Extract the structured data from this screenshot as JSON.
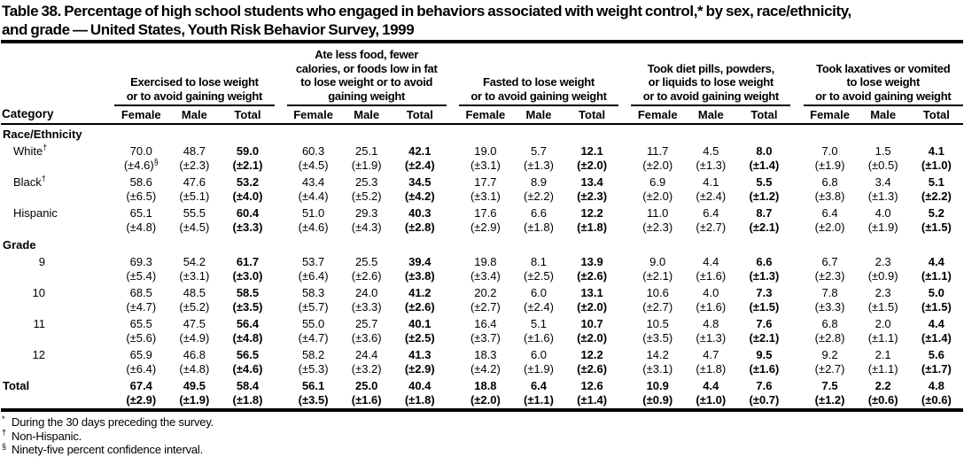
{
  "table": {
    "title": "Table 38. Percentage of high school students who engaged in behaviors associated with weight control,* by sex, race/ethnicity,\nand grade — United States, Youth Risk Behavior Survey, 1999",
    "category_header": "Category",
    "column_groups": [
      "Exercised to lose weight\nor to avoid gaining weight",
      "Ate less food, fewer\ncalories, or foods low in fat\nto lose weight or to avoid\ngaining weight",
      "Fasted to lose weight\nor to avoid gaining weight",
      "Took diet pills, powders,\nor liquids to lose weight\nor to avoid gaining weight",
      "Took laxatives or vomited\nto lose weight\nor to avoid gaining weight"
    ],
    "sub_columns": [
      "Female",
      "Male",
      "Total"
    ],
    "rows": [
      {
        "type": "section",
        "label": "Race/Ethnicity"
      },
      {
        "type": "data",
        "label": "White",
        "sup": "†",
        "indent": "race",
        "values": [
          "70.0",
          "48.7",
          "59.0",
          "60.3",
          "25.1",
          "42.1",
          "19.0",
          "5.7",
          "12.1",
          "11.7",
          "4.5",
          "8.0",
          "7.0",
          "1.5",
          "4.1"
        ],
        "cis": [
          "(±4.6)",
          "(±2.3)",
          "(±2.1)",
          "(±4.5)",
          "(±1.9)",
          "(±2.4)",
          "(±3.1)",
          "(±1.3)",
          "(±2.0)",
          "(±2.0)",
          "(±1.3)",
          "(±1.4)",
          "(±1.9)",
          "(±0.5)",
          "(±1.0)"
        ],
        "ci_sups": {
          "0": "§"
        }
      },
      {
        "type": "data",
        "label": "Black",
        "sup": "†",
        "indent": "race",
        "values": [
          "58.6",
          "47.6",
          "53.2",
          "43.4",
          "25.3",
          "34.5",
          "17.7",
          "8.9",
          "13.4",
          "6.9",
          "4.1",
          "5.5",
          "6.8",
          "3.4",
          "5.1"
        ],
        "cis": [
          "(±6.5)",
          "(±5.1)",
          "(±4.0)",
          "(±4.4)",
          "(±5.2)",
          "(±4.2)",
          "(±3.1)",
          "(±2.2)",
          "(±2.3)",
          "(±2.0)",
          "(±2.4)",
          "(±1.2)",
          "(±3.8)",
          "(±1.3)",
          "(±2.2)"
        ]
      },
      {
        "type": "data",
        "label": "Hispanic",
        "indent": "race",
        "values": [
          "65.1",
          "55.5",
          "60.4",
          "51.0",
          "29.3",
          "40.3",
          "17.6",
          "6.6",
          "12.2",
          "11.0",
          "6.4",
          "8.7",
          "6.4",
          "4.0",
          "5.2"
        ],
        "cis": [
          "(±4.8)",
          "(±4.5)",
          "(±3.3)",
          "(±4.6)",
          "(±4.3)",
          "(±2.8)",
          "(±2.9)",
          "(±1.8)",
          "(±1.8)",
          "(±2.3)",
          "(±2.7)",
          "(±2.1)",
          "(±2.0)",
          "(±1.9)",
          "(±1.5)"
        ]
      },
      {
        "type": "section",
        "label": "Grade"
      },
      {
        "type": "data",
        "label": "9",
        "indent": "grade",
        "values": [
          "69.3",
          "54.2",
          "61.7",
          "53.7",
          "25.5",
          "39.4",
          "19.8",
          "8.1",
          "13.9",
          "9.0",
          "4.4",
          "6.6",
          "6.7",
          "2.3",
          "4.4"
        ],
        "cis": [
          "(±5.4)",
          "(±3.1)",
          "(±3.0)",
          "(±6.4)",
          "(±2.6)",
          "(±3.8)",
          "(±3.4)",
          "(±2.5)",
          "(±2.6)",
          "(±2.1)",
          "(±1.6)",
          "(±1.3)",
          "(±2.3)",
          "(±0.9)",
          "(±1.1)"
        ]
      },
      {
        "type": "data",
        "label": "10",
        "indent": "grade",
        "values": [
          "68.5",
          "48.5",
          "58.5",
          "58.3",
          "24.0",
          "41.2",
          "20.2",
          "6.0",
          "13.1",
          "10.6",
          "4.0",
          "7.3",
          "7.8",
          "2.3",
          "5.0"
        ],
        "cis": [
          "(±4.7)",
          "(±5.2)",
          "(±3.5)",
          "(±5.7)",
          "(±3.3)",
          "(±2.6)",
          "(±2.7)",
          "(±2.4)",
          "(±2.0)",
          "(±2.7)",
          "(±1.6)",
          "(±1.5)",
          "(±3.3)",
          "(±1.5)",
          "(±1.5)"
        ]
      },
      {
        "type": "data",
        "label": "11",
        "indent": "grade",
        "values": [
          "65.5",
          "47.5",
          "56.4",
          "55.0",
          "25.7",
          "40.1",
          "16.4",
          "5.1",
          "10.7",
          "10.5",
          "4.8",
          "7.6",
          "6.8",
          "2.0",
          "4.4"
        ],
        "cis": [
          "(±5.6)",
          "(±4.9)",
          "(±4.8)",
          "(±4.7)",
          "(±3.6)",
          "(±2.5)",
          "(±3.7)",
          "(±1.6)",
          "(±2.0)",
          "(±3.5)",
          "(±1.3)",
          "(±2.1)",
          "(±2.8)",
          "(±1.1)",
          "(±1.4)"
        ]
      },
      {
        "type": "data",
        "label": "12",
        "indent": "grade",
        "values": [
          "65.9",
          "46.8",
          "56.5",
          "58.2",
          "24.4",
          "41.3",
          "18.3",
          "6.0",
          "12.2",
          "14.2",
          "4.7",
          "9.5",
          "9.2",
          "2.1",
          "5.6"
        ],
        "cis": [
          "(±6.4)",
          "(±4.8)",
          "(±4.6)",
          "(±5.3)",
          "(±3.2)",
          "(±2.9)",
          "(±4.2)",
          "(±1.9)",
          "(±2.6)",
          "(±3.1)",
          "(±1.8)",
          "(±1.6)",
          "(±2.7)",
          "(±1.1)",
          "(±1.7)"
        ]
      },
      {
        "type": "total",
        "label": "Total",
        "values": [
          "67.4",
          "49.5",
          "58.4",
          "56.1",
          "25.0",
          "40.4",
          "18.8",
          "6.4",
          "12.6",
          "10.9",
          "4.4",
          "7.6",
          "7.5",
          "2.2",
          "4.8"
        ],
        "cis": [
          "(±2.9)",
          "(±1.9)",
          "(±1.8)",
          "(±3.5)",
          "(±1.6)",
          "(±1.8)",
          "(±2.0)",
          "(±1.1)",
          "(±1.4)",
          "(±0.9)",
          "(±1.0)",
          "(±0.7)",
          "(±1.2)",
          "(±0.6)",
          "(±0.6)"
        ]
      }
    ],
    "footnotes": [
      {
        "mark": "*",
        "text": "During the 30 days preceding the survey."
      },
      {
        "mark": "†",
        "text": "Non-Hispanic."
      },
      {
        "mark": "§",
        "text": "Ninety-five percent confidence interval."
      }
    ]
  }
}
